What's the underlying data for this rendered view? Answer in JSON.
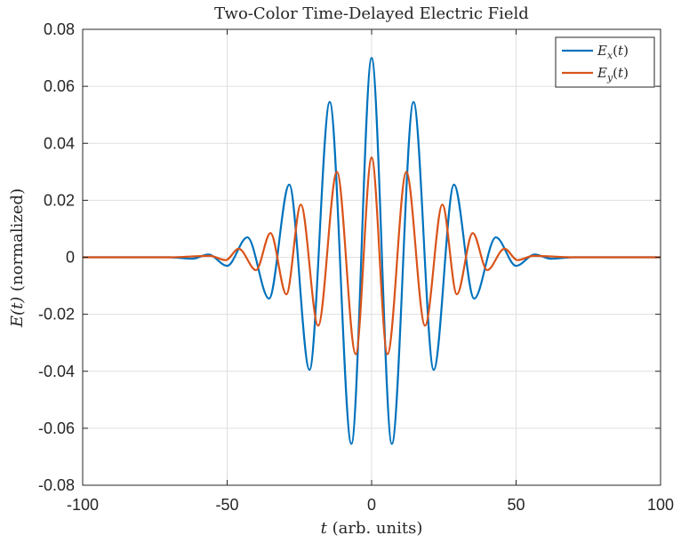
{
  "chart_data": {
    "type": "line",
    "title": "Two-Color Time-Delayed Electric Field",
    "xlabel_var": "t",
    "xlabel_rest": " (arb. units)",
    "ylabel_var": "E(t)",
    "ylabel_rest": " (normalized)",
    "xlim": [
      -100,
      100
    ],
    "ylim": [
      -0.08,
      0.08
    ],
    "xticks": [
      -100,
      -50,
      0,
      50,
      100
    ],
    "xtick_labels": [
      "-100",
      "-50",
      "0",
      "50",
      "100"
    ],
    "yticks": [
      -0.08,
      -0.06,
      -0.04,
      -0.02,
      0,
      0.02,
      0.04,
      0.06,
      0.08
    ],
    "ytick_labels": [
      "-0.08",
      "-0.06",
      "-0.04",
      "-0.02",
      "0",
      "0.02",
      "0.04",
      "0.06",
      "0.08"
    ],
    "grid": true,
    "legend_position": "top-right",
    "series": [
      {
        "name": "E_x(t)",
        "legend_label": "Ex(t)",
        "color": "#0072bd",
        "x": [
          -100,
          -70,
          -62,
          -56.5,
          -50,
          -43,
          -35.5,
          -28.5,
          -21.5,
          -14.5,
          -7,
          0,
          7,
          14.5,
          21.5,
          28.5,
          35.5,
          43,
          50,
          56.5,
          62,
          70,
          100
        ],
        "y": [
          0,
          0,
          -0.0005,
          0.001,
          -0.003,
          0.007,
          -0.0145,
          0.0255,
          -0.0395,
          0.0545,
          -0.0655,
          0.07,
          -0.0655,
          0.0545,
          -0.0395,
          0.0255,
          -0.0145,
          0.007,
          -0.003,
          0.001,
          -0.0005,
          0,
          0
        ]
      },
      {
        "name": "E_y(t)",
        "legend_label": "Ey(t)",
        "color": "#d95319",
        "x": [
          -100,
          -70,
          -56,
          -50.5,
          -46,
          -40,
          -35,
          -29.5,
          -24.5,
          -18.5,
          -12,
          -5.5,
          0,
          5.5,
          12,
          18.5,
          24.5,
          29.5,
          35,
          40,
          46,
          50.5,
          56,
          70,
          100
        ],
        "y": [
          0,
          0,
          0.0005,
          -0.001,
          0.003,
          -0.0045,
          0.0085,
          -0.013,
          0.0185,
          -0.024,
          0.03,
          -0.034,
          0.035,
          -0.034,
          0.03,
          -0.024,
          0.0185,
          -0.013,
          0.0085,
          -0.0045,
          0.003,
          -0.001,
          0.0005,
          0,
          0
        ]
      }
    ]
  }
}
